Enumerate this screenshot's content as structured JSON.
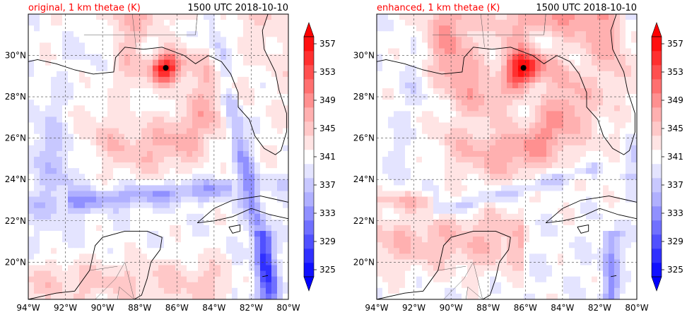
{
  "panels": [
    {
      "title_left": "original, 1 km thetae (K)",
      "title_right": "1500 UTC 2018-10-10",
      "storm_center": {
        "lon": -86.6,
        "lat": 29.4
      },
      "mode": "original"
    },
    {
      "title_left": "enhanced, 1 km thetae (K)",
      "title_right": "1500 UTC 2018-10-10",
      "storm_center": {
        "lon": -86.1,
        "lat": 29.4
      },
      "mode": "enhanced"
    }
  ],
  "map": {
    "lon_range": [
      -94,
      -80
    ],
    "lat_range": [
      18.2,
      32.0
    ],
    "lon_ticks": [
      "94°W",
      "92°W",
      "90°W",
      "88°W",
      "86°W",
      "84°W",
      "82°W",
      "80°W"
    ],
    "lon_values": [
      -94,
      -92,
      -90,
      -88,
      -86,
      -84,
      -82,
      -80
    ],
    "lat_ticks": [
      "20°N",
      "22°N",
      "24°N",
      "26°N",
      "28°N",
      "30°N"
    ],
    "lat_values": [
      20,
      22,
      24,
      26,
      28,
      30
    ],
    "gridlines": true
  },
  "colorbar": {
    "levels": [
      325,
      327,
      329,
      331,
      333,
      335,
      337,
      339,
      341,
      343,
      345,
      347,
      349,
      351,
      353,
      355,
      357,
      359
    ],
    "tick_labels": [
      "325",
      "329",
      "333",
      "337",
      "341",
      "345",
      "349",
      "353",
      "357"
    ],
    "tick_values": [
      325,
      329,
      333,
      337,
      341,
      345,
      349,
      353,
      357
    ],
    "extend": "both",
    "colors": [
      "#1010ff",
      "#3030ff",
      "#5050ff",
      "#7070ff",
      "#9090ff",
      "#b0b0ff",
      "#c8c8ff",
      "#e4e4ff",
      "#ffffff",
      "#ffe4e4",
      "#ffc8c8",
      "#ffb0b0",
      "#ff9090",
      "#ff7070",
      "#ff5050",
      "#ff3030",
      "#ff1010"
    ],
    "under_color": "#0000ff",
    "over_color": "#ff0000"
  },
  "title_colors": {
    "left": "#ff0000",
    "right": "#000000"
  }
}
